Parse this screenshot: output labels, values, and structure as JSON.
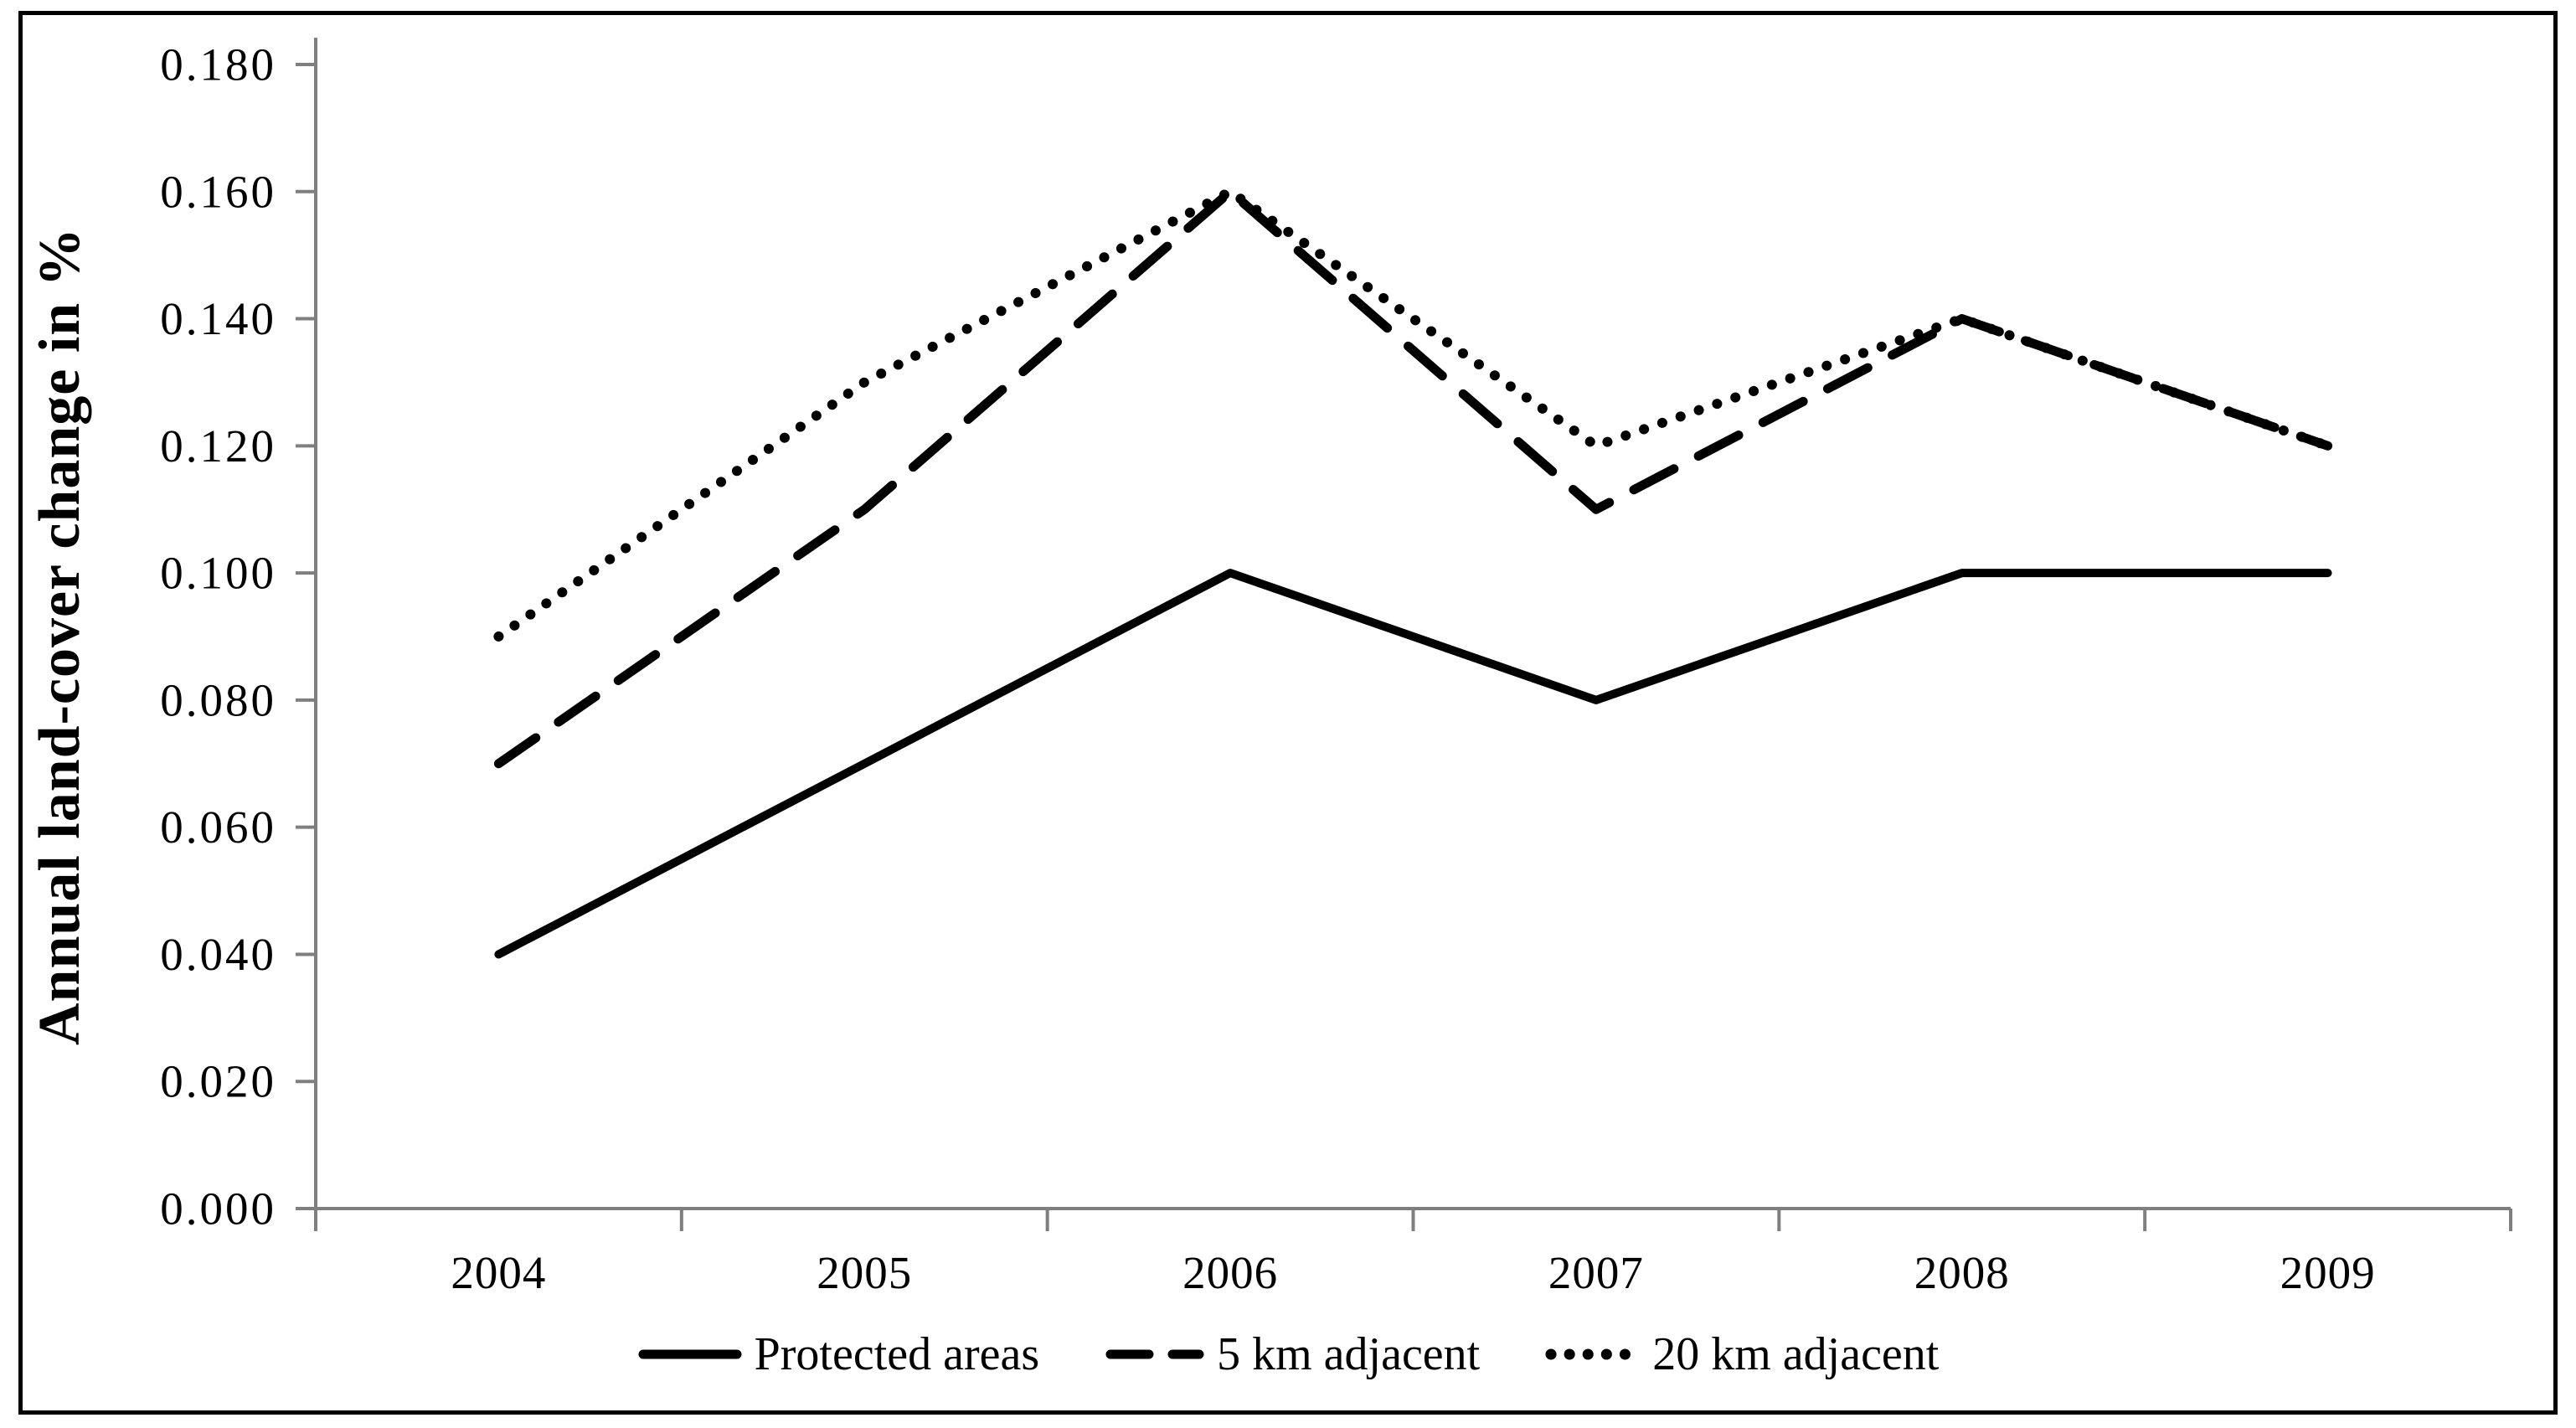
{
  "figure": {
    "background_color": "#ffffff",
    "border_color": "#000000",
    "axis_color": "#7f7f7f",
    "line_color": "#000000"
  },
  "chart_data": {
    "type": "line",
    "title": "",
    "xlabel": "",
    "ylabel": "Annual land-cover change in %",
    "categories": [
      "2004",
      "2005",
      "2006",
      "2007",
      "2008",
      "2009"
    ],
    "series": [
      {
        "name": "Protected areas",
        "style": "solid",
        "values": [
          0.04,
          0.07,
          0.1,
          0.08,
          0.1,
          0.1
        ]
      },
      {
        "name": "5 km adjacent",
        "style": "dashed",
        "values": [
          0.07,
          0.11,
          0.16,
          0.11,
          0.14,
          0.12
        ]
      },
      {
        "name": "20 km adjacent",
        "style": "dotted",
        "values": [
          0.09,
          0.13,
          0.16,
          0.12,
          0.14,
          0.12
        ]
      }
    ],
    "ylim": [
      0.0,
      0.18
    ],
    "ytick_step": 0.02,
    "ytick_labels": [
      "0.000",
      "0.020",
      "0.040",
      "0.060",
      "0.080",
      "0.100",
      "0.120",
      "0.140",
      "0.160",
      "0.180"
    ],
    "grid": false,
    "legend_position": "bottom",
    "series_color": "#000000"
  }
}
